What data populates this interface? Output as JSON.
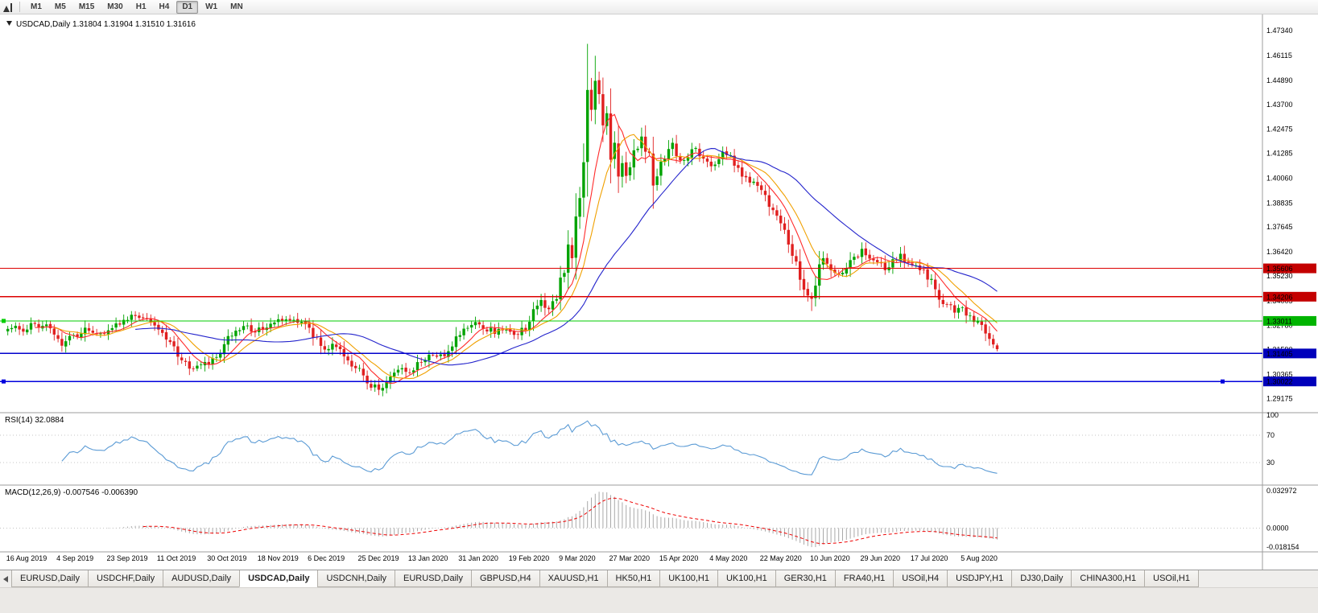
{
  "toolbar": {
    "timeframes": [
      {
        "label": "M1",
        "active": false
      },
      {
        "label": "M5",
        "active": false
      },
      {
        "label": "M15",
        "active": false
      },
      {
        "label": "M30",
        "active": false
      },
      {
        "label": "H1",
        "active": false
      },
      {
        "label": "H4",
        "active": false
      },
      {
        "label": "D1",
        "active": true
      },
      {
        "label": "W1",
        "active": false
      },
      {
        "label": "MN",
        "active": false
      }
    ]
  },
  "chart_data": {
    "type": "candlestick",
    "symbol": "USDCAD",
    "timeframe": "Daily",
    "last_candle": {
      "o": 1.31804,
      "h": 1.31904,
      "l": 1.3151,
      "c": 1.31616
    },
    "price_axis_labels": [
      "1.47340",
      "1.46115",
      "1.44890",
      "1.43700",
      "1.42475",
      "1.41285",
      "1.40060",
      "1.38835",
      "1.37645",
      "1.36420",
      "1.35230",
      "1.34005",
      "1.32780",
      "1.31590",
      "1.30365",
      "1.29175"
    ],
    "hlines": [
      {
        "price": 1.35606,
        "label": "1.35606",
        "color": "#dd0000",
        "badge": "#c40000",
        "width": 1.2,
        "left_marker": false,
        "right_marker": false
      },
      {
        "price": 1.34206,
        "label": "1.34206",
        "color": "#dd0000",
        "badge": "#c40000",
        "width": 1.2,
        "left_marker": false,
        "right_marker": false
      },
      {
        "price": 1.33011,
        "label": "1.33011",
        "color": "#00ce00",
        "badge": "#00b400",
        "width": 1.3,
        "left_marker": true,
        "right_marker": false
      },
      {
        "price": 1.31405,
        "label": "1.31405",
        "color": "#0000cc",
        "badge": "#0000bb",
        "width": 1.3,
        "left_marker": false,
        "right_marker": false
      },
      {
        "price": 1.30022,
        "label": "1.30022",
        "color": "#0000dd",
        "badge": "#0000bb",
        "width": 1.7,
        "left_marker": true,
        "right_marker": true
      }
    ],
    "date_labels": [
      {
        "idx": 0,
        "text": "16 Aug 2019"
      },
      {
        "idx": 13,
        "text": "4 Sep 2019"
      },
      {
        "idx": 26,
        "text": "23 Sep 2019"
      },
      {
        "idx": 39,
        "text": "11 Oct 2019"
      },
      {
        "idx": 52,
        "text": "30 Oct 2019"
      },
      {
        "idx": 65,
        "text": "18 Nov 2019"
      },
      {
        "idx": 78,
        "text": "6 Dec 2019"
      },
      {
        "idx": 91,
        "text": "25 Dec 2019"
      },
      {
        "idx": 104,
        "text": "13 Jan 2020"
      },
      {
        "idx": 117,
        "text": "31 Jan 2020"
      },
      {
        "idx": 130,
        "text": "19 Feb 2020"
      },
      {
        "idx": 143,
        "text": "9 Mar 2020"
      },
      {
        "idx": 156,
        "text": "27 Mar 2020"
      },
      {
        "idx": 169,
        "text": "15 Apr 2020"
      },
      {
        "idx": 182,
        "text": "4 May 2020"
      },
      {
        "idx": 195,
        "text": "22 May 2020"
      },
      {
        "idx": 208,
        "text": "10 Jun 2020"
      },
      {
        "idx": 221,
        "text": "29 Jun 2020"
      },
      {
        "idx": 234,
        "text": "17 Jul 2020"
      },
      {
        "idx": 247,
        "text": "5 Aug 2020"
      }
    ],
    "candle_count": 257,
    "price_anchors": [
      [
        0,
        1.3265
      ],
      [
        2,
        1.3285
      ],
      [
        4,
        1.3245
      ],
      [
        6,
        1.33
      ],
      [
        8,
        1.3272
      ],
      [
        10,
        1.329
      ],
      [
        12,
        1.3225
      ],
      [
        14,
        1.3168
      ],
      [
        16,
        1.321
      ],
      [
        18,
        1.3238
      ],
      [
        20,
        1.3265
      ],
      [
        23,
        1.3242
      ],
      [
        26,
        1.3252
      ],
      [
        29,
        1.329
      ],
      [
        32,
        1.3332
      ],
      [
        34,
        1.3312
      ],
      [
        36,
        1.3322
      ],
      [
        38,
        1.3292
      ],
      [
        40,
        1.3252
      ],
      [
        42,
        1.3182
      ],
      [
        44,
        1.3132
      ],
      [
        46,
        1.3092
      ],
      [
        48,
        1.3066
      ],
      [
        50,
        1.3076
      ],
      [
        52,
        1.3096
      ],
      [
        54,
        1.3132
      ],
      [
        56,
        1.3186
      ],
      [
        58,
        1.323
      ],
      [
        60,
        1.3256
      ],
      [
        62,
        1.327
      ],
      [
        64,
        1.3246
      ],
      [
        66,
        1.3266
      ],
      [
        68,
        1.329
      ],
      [
        70,
        1.33
      ],
      [
        72,
        1.3312
      ],
      [
        74,
        1.3296
      ],
      [
        76,
        1.3302
      ],
      [
        78,
        1.3256
      ],
      [
        80,
        1.3216
      ],
      [
        82,
        1.3172
      ],
      [
        84,
        1.3176
      ],
      [
        86,
        1.3152
      ],
      [
        88,
        1.3112
      ],
      [
        90,
        1.3072
      ],
      [
        92,
        1.3032
      ],
      [
        94,
        1.2986
      ],
      [
        96,
        1.2966
      ],
      [
        98,
        1.3002
      ],
      [
        100,
        1.3046
      ],
      [
        102,
        1.3062
      ],
      [
        104,
        1.3052
      ],
      [
        106,
        1.3086
      ],
      [
        108,
        1.3112
      ],
      [
        110,
        1.3142
      ],
      [
        112,
        1.3126
      ],
      [
        114,
        1.3162
      ],
      [
        116,
        1.3206
      ],
      [
        118,
        1.3256
      ],
      [
        120,
        1.3292
      ],
      [
        122,
        1.3282
      ],
      [
        124,
        1.3262
      ],
      [
        126,
        1.3246
      ],
      [
        128,
        1.3256
      ],
      [
        130,
        1.3242
      ],
      [
        132,
        1.3226
      ],
      [
        134,
        1.3272
      ],
      [
        136,
        1.3342
      ],
      [
        138,
        1.3392
      ],
      [
        140,
        1.3362
      ],
      [
        142,
        1.3422
      ],
      [
        144,
        1.3562
      ],
      [
        145,
        1.3682
      ],
      [
        146,
        1.3622
      ],
      [
        147,
        1.3782
      ],
      [
        148,
        1.3952
      ],
      [
        149,
        1.4102
      ],
      [
        150,
        1.4482
      ],
      [
        151,
        1.4352
      ],
      [
        152,
        1.4502
      ],
      [
        153,
        1.4422
      ],
      [
        154,
        1.4252
      ],
      [
        155,
        1.4342
      ],
      [
        156,
        1.4102
      ],
      [
        157,
        1.4182
      ],
      [
        158,
        1.4002
      ],
      [
        159,
        1.4082
      ],
      [
        160,
        1.4022
      ],
      [
        162,
        1.4122
      ],
      [
        164,
        1.4202
      ],
      [
        166,
        1.4092
      ],
      [
        167,
        1.3962
      ],
      [
        168,
        1.4042
      ],
      [
        170,
        1.4112
      ],
      [
        172,
        1.4172
      ],
      [
        174,
        1.4082
      ],
      [
        176,
        1.4122
      ],
      [
        178,
        1.4152
      ],
      [
        180,
        1.4102
      ],
      [
        182,
        1.4062
      ],
      [
        184,
        1.4112
      ],
      [
        186,
        1.4132
      ],
      [
        188,
        1.4082
      ],
      [
        190,
        1.4032
      ],
      [
        192,
        1.3992
      ],
      [
        194,
        1.3972
      ],
      [
        196,
        1.3922
      ],
      [
        198,
        1.3852
      ],
      [
        200,
        1.3782
      ],
      [
        202,
        1.3702
      ],
      [
        204,
        1.3582
      ],
      [
        206,
        1.3482
      ],
      [
        208,
        1.3402
      ],
      [
        209,
        1.3452
      ],
      [
        210,
        1.3562
      ],
      [
        211,
        1.3602
      ],
      [
        213,
        1.3556
      ],
      [
        215,
        1.3526
      ],
      [
        217,
        1.3562
      ],
      [
        219,
        1.3612
      ],
      [
        221,
        1.3652
      ],
      [
        223,
        1.3622
      ],
      [
        225,
        1.3582
      ],
      [
        227,
        1.3562
      ],
      [
        229,
        1.3602
      ],
      [
        231,
        1.3622
      ],
      [
        233,
        1.3592
      ],
      [
        235,
        1.3562
      ],
      [
        237,
        1.3542
      ],
      [
        239,
        1.3502
      ],
      [
        241,
        1.3422
      ],
      [
        243,
        1.3382
      ],
      [
        245,
        1.3352
      ],
      [
        247,
        1.3362
      ],
      [
        249,
        1.3322
      ],
      [
        251,
        1.3292
      ],
      [
        253,
        1.3252
      ],
      [
        255,
        1.3206
      ],
      [
        256,
        1.3162
      ]
    ],
    "extremes": [
      {
        "idx": 150,
        "high": 1.4669
      },
      {
        "idx": 152,
        "high": 1.461
      },
      {
        "idx": 95,
        "low": 1.2951
      },
      {
        "idx": 96,
        "low": 1.2955
      },
      {
        "idx": 167,
        "low": 1.3855
      },
      {
        "idx": 208,
        "low": 1.335
      }
    ],
    "moving_averages": [
      {
        "period": 8,
        "color": "#ff2a2a"
      },
      {
        "period": 13,
        "color": "#f0a000"
      },
      {
        "period": 34,
        "color": "#2424cc"
      }
    ],
    "rsi": {
      "label": "RSI(14)",
      "value": "32.0884",
      "period": 14,
      "levels": [
        "100",
        "70",
        "30"
      ],
      "color": "#5b9bd5"
    },
    "macd": {
      "label": "MACD(12,26,9)",
      "values": "-0.007546 -0.006390",
      "fast": 12,
      "slow": 26,
      "signal": 9,
      "axis_top": "0.032972",
      "axis_zero": "0.0000",
      "axis_bottom": "-0.018154",
      "hist_color": "#a9a9a9",
      "signal_color": "#ee0000"
    },
    "colors": {
      "up": "#00a300",
      "down": "#e02020",
      "axis_text": "#000000",
      "grid": "#c4c4c4",
      "divider": "#9c9c9c"
    }
  },
  "tabs": [
    {
      "label": "EURUSD,Daily",
      "active": false
    },
    {
      "label": "USDCHF,Daily",
      "active": false
    },
    {
      "label": "AUDUSD,Daily",
      "active": false
    },
    {
      "label": "USDCAD,Daily",
      "active": true
    },
    {
      "label": "USDCNH,Daily",
      "active": false
    },
    {
      "label": "EURUSD,Daily",
      "active": false
    },
    {
      "label": "GBPUSD,H4",
      "active": false
    },
    {
      "label": "XAUUSD,H1",
      "active": false
    },
    {
      "label": "HK50,H1",
      "active": false
    },
    {
      "label": "UK100,H1",
      "active": false
    },
    {
      "label": "UK100,H1",
      "active": false
    },
    {
      "label": "GER30,H1",
      "active": false
    },
    {
      "label": "FRA40,H1",
      "active": false
    },
    {
      "label": "USOil,H4",
      "active": false
    },
    {
      "label": "USDJPY,H1",
      "active": false
    },
    {
      "label": "DJ30,Daily",
      "active": false
    },
    {
      "label": "CHINA300,H1",
      "active": false
    },
    {
      "label": "USOil,H1",
      "active": false
    }
  ]
}
